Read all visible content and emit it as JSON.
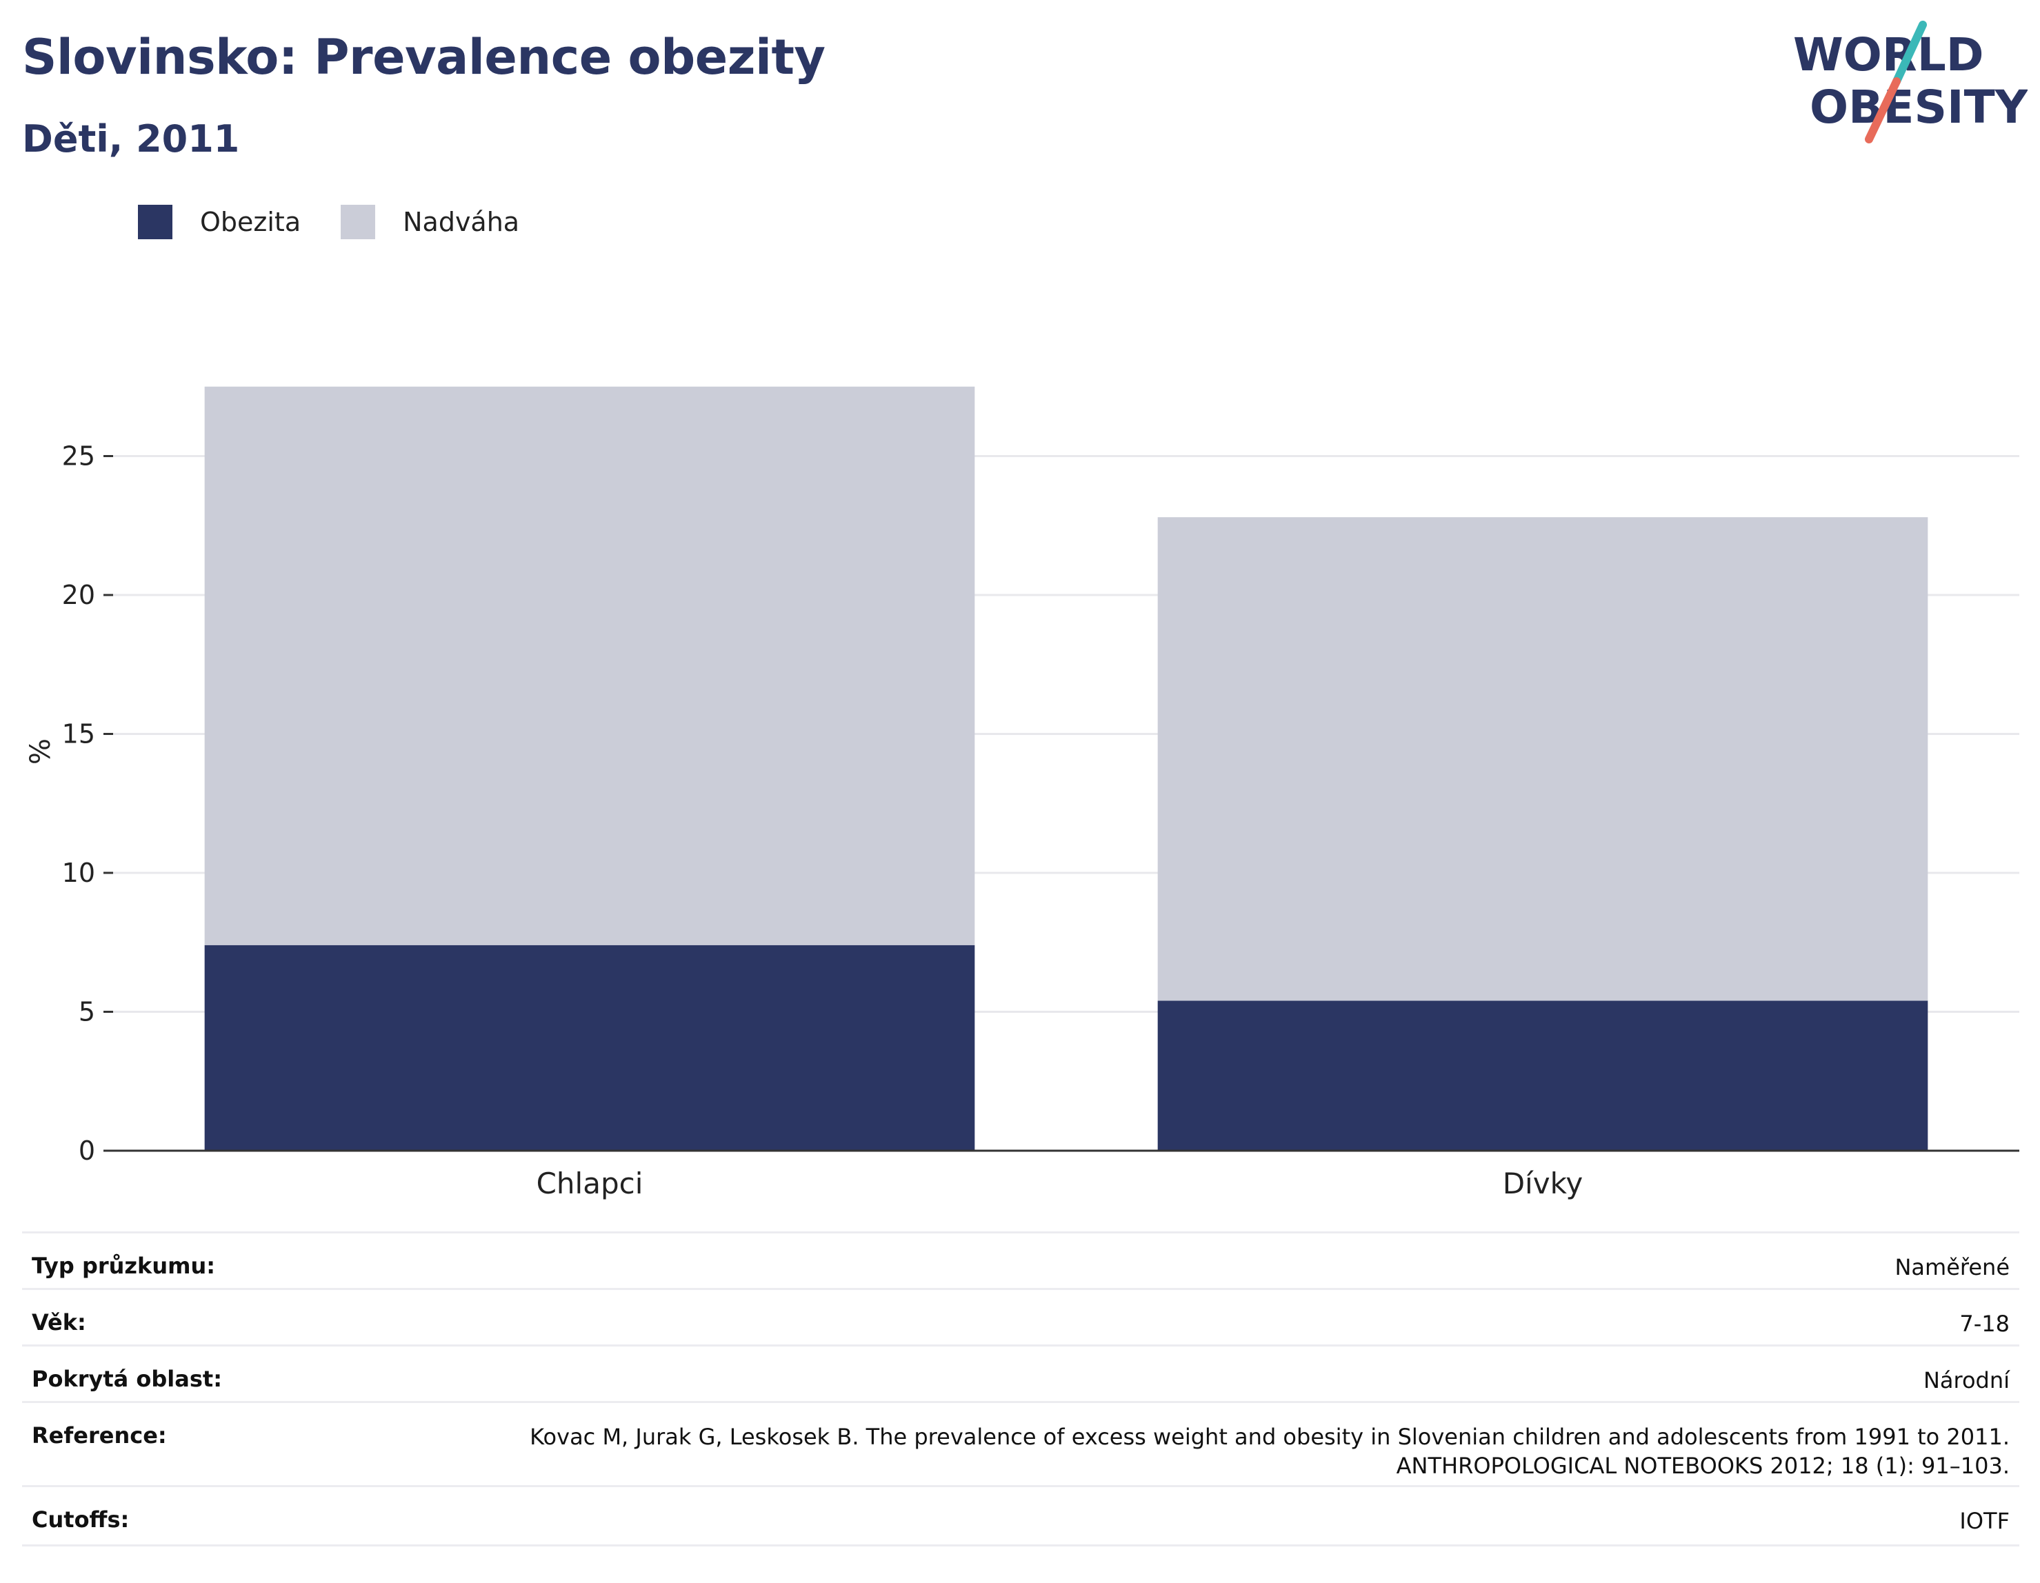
{
  "header": {
    "title": "Slovinsko: Prevalence obezity",
    "subtitle": "Děti, 2011"
  },
  "logo": {
    "line1": "WORLD",
    "line2": "OBESITY",
    "accent_teal": "#3bb8b8",
    "accent_coral": "#e86b5a",
    "text_color": "#2b3663"
  },
  "legend": {
    "items": [
      {
        "label": "Obezita",
        "color": "#2b3663"
      },
      {
        "label": "Nadváha",
        "color": "#cbcdd8"
      }
    ]
  },
  "chart_data": {
    "type": "bar",
    "stacked": true,
    "categories": [
      "Chlapci",
      "Dívky"
    ],
    "series": [
      {
        "name": "Obezita",
        "color": "#2b3663",
        "values": [
          7.4,
          5.4
        ]
      },
      {
        "name": "Nadváha",
        "color": "#cbcdd8",
        "values": [
          20.1,
          17.4
        ]
      }
    ],
    "ylabel": "%",
    "ylim": [
      0,
      29
    ],
    "yticks": [
      0,
      5,
      10,
      15,
      20,
      25
    ],
    "grid": true,
    "legend_position": "top-left"
  },
  "info": {
    "rows": [
      {
        "label": "Typ průzkumu:",
        "value": [
          "Naměřené"
        ]
      },
      {
        "label": "Věk:",
        "value": [
          "7-18"
        ]
      },
      {
        "label": "Pokrytá oblast:",
        "value": [
          "Národní"
        ]
      },
      {
        "label": "Reference:",
        "value": [
          "Kovac M, Jurak G, Leskosek B. The prevalence of excess weight and obesity in Slovenian children and adolescents from 1991 to 2011.",
          "ANTHROPOLOGICAL NOTEBOOKS 2012; 18 (1): 91–103."
        ]
      },
      {
        "label": "Cutoffs:",
        "value": [
          "IOTF"
        ]
      }
    ]
  }
}
